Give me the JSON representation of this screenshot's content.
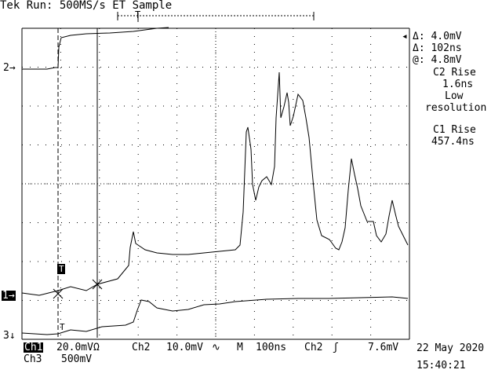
{
  "header": {
    "title": "Tek Run: 500MS/s ET Sample"
  },
  "measurements": {
    "delta_v": "Δ: 4.0mV",
    "delta_t": "Δ: 102ns",
    "at_v": "@: 4.8mV",
    "c2_rise_label": "C2 Rise",
    "c2_rise_value": "1.6ns",
    "low": "Low",
    "resolution": "resolution",
    "c1_rise_label": "C1 Rise",
    "c1_rise_value": "457.4ns"
  },
  "channel_markers": {
    "ch2": "2",
    "ch1": "1",
    "ch3": "3",
    "trigger": "T"
  },
  "footer": {
    "ch1_label": "Ch1",
    "ch1_scale": "20.0mVΩ",
    "ch2_label": "Ch2",
    "ch2_scale": "10.0mV",
    "timebase_label": "M",
    "timebase_value": "100ns",
    "trigger_source": "Ch2",
    "trigger_level": "7.6mV",
    "ch3_label": "Ch3",
    "ch3_scale": "500mV",
    "date": "22 May 2020",
    "time": "15:40:21"
  },
  "colors": {
    "background": "#ffffff",
    "trace": "#000000",
    "grid": "#000000"
  }
}
